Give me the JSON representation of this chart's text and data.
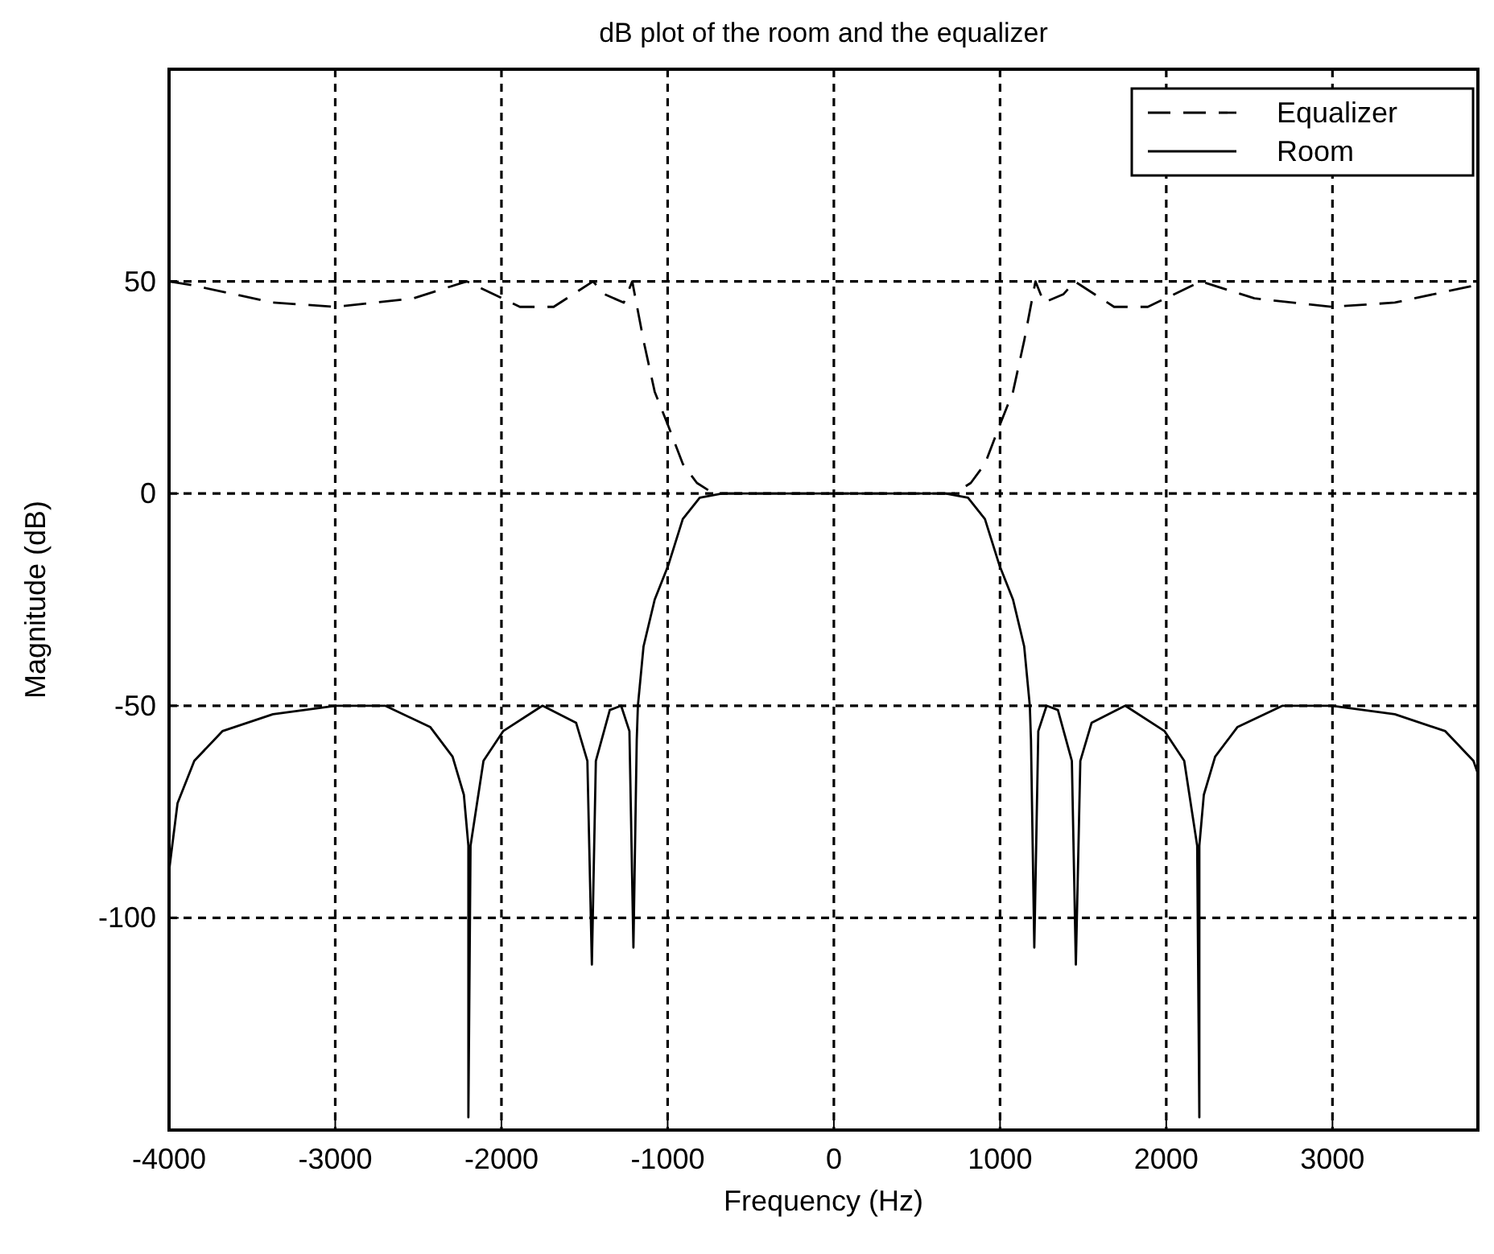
{
  "chart_data": {
    "type": "line",
    "title": "dB plot of the room and the equalizer",
    "xlabel": "Frequency (Hz)",
    "ylabel": "Magnitude (dB)",
    "xlim": [
      -4000,
      3875
    ],
    "ylim": [
      -150,
      100
    ],
    "xticks": [
      -4000,
      -3000,
      -2000,
      -1000,
      0,
      1000,
      2000,
      3000
    ],
    "yticks": [
      -100,
      -50,
      0,
      50
    ],
    "grid": true,
    "legend": "top right",
    "series": [
      {
        "name": "Equalizer",
        "color": "#000000",
        "line_style": "dashed",
        "x": [
          -4000,
          -3848,
          -3375,
          -2997,
          -2530,
          -2209,
          -1889,
          -1686,
          -1449,
          -1382,
          -1264,
          -1213,
          -1145,
          -1078,
          -997,
          -909,
          -824,
          -723,
          0,
          723,
          824,
          909,
          997,
          1078,
          1145,
          1213,
          1264,
          1382,
          1449,
          1686,
          1889,
          2209,
          2530,
          2997,
          3375,
          3848,
          3875
        ],
        "values": [
          50,
          49,
          45,
          44,
          46,
          50,
          44,
          44,
          50,
          47,
          45,
          50,
          36,
          24,
          16,
          7,
          2.5,
          0,
          0,
          0,
          2.5,
          7,
          16,
          24,
          36,
          50,
          45,
          47,
          50,
          44,
          44,
          50,
          46,
          44,
          45,
          49,
          49
        ]
      },
      {
        "name": "Room",
        "color": "#000000",
        "line_style": "solid",
        "x": [
          -4000,
          -3949,
          -3848,
          -3679,
          -3375,
          -2997,
          -2700,
          -2429,
          -2294,
          -2226,
          -2199,
          -2199,
          -2186,
          -2108,
          -1990,
          -1753,
          -1551,
          -1483,
          -1456,
          -1432,
          -1348,
          -1280,
          -1230,
          -1206,
          -1186,
          -1179,
          -1145,
          -1078,
          -997,
          -909,
          -807,
          -672,
          0,
          672,
          807,
          909,
          997,
          1078,
          1145,
          1179,
          1186,
          1206,
          1230,
          1280,
          1348,
          1432,
          1456,
          1483,
          1551,
          1753,
          1990,
          2108,
          2186,
          2199,
          2199,
          2226,
          2294,
          2429,
          2700,
          2997,
          3375,
          3679,
          3848,
          3875
        ],
        "values": [
          -89,
          -73,
          -63,
          -56,
          -52,
          -50,
          -50,
          -55,
          -62,
          -71,
          -83,
          -147,
          -83,
          -63,
          -56,
          -50,
          -54,
          -63,
          -111,
          -63,
          -51,
          -50,
          -56,
          -107,
          -58,
          -50,
          -36,
          -25,
          -17,
          -6,
          -1,
          0,
          0,
          0,
          -1,
          -6,
          -17,
          -25,
          -36,
          -50,
          -58,
          -107,
          -56,
          -50,
          -51,
          -63,
          -111,
          -63,
          -54,
          -50,
          -56,
          -63,
          -83,
          -147,
          -83,
          -71,
          -62,
          -55,
          -50,
          -50,
          -52,
          -56,
          -63,
          -66
        ]
      }
    ]
  }
}
